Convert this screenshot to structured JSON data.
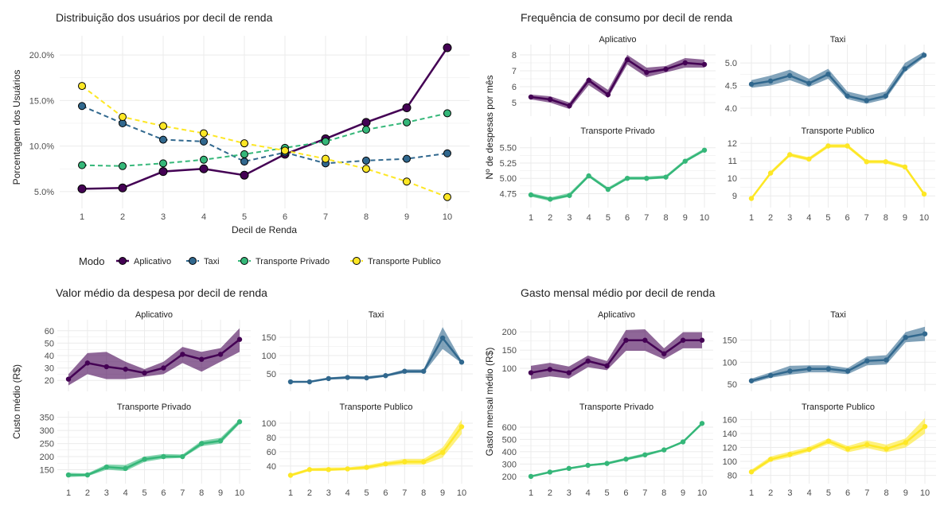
{
  "colors": {
    "aplicativo": "#440154",
    "taxi": "#31688E",
    "privado": "#35B779",
    "publico": "#FDE725",
    "grid": "#EBEBEB",
    "text": "#222222",
    "tick": "#4D4D4D"
  },
  "legend": {
    "title": "Modo",
    "items": [
      "Aplicativo",
      "Taxi",
      "Transporte Privado",
      "Transporte Publico"
    ]
  },
  "chart_data": [
    {
      "type": "line",
      "title": "Distribuição dos usuários por decil de renda",
      "xlabel": "Decil de Renda",
      "ylabel": "Porcentagem dos Usuários",
      "x": [
        1,
        2,
        3,
        4,
        5,
        6,
        7,
        8,
        9,
        10
      ],
      "ylim": [
        3.5,
        21.5
      ],
      "yticks": [
        "5.0%",
        "10.0%",
        "15.0%",
        "20.0%"
      ],
      "ytick_values": [
        5,
        10,
        15,
        20
      ],
      "series": [
        {
          "name": "Aplicativo",
          "values": [
            5.3,
            5.4,
            7.2,
            7.5,
            6.8,
            9.1,
            10.8,
            12.6,
            14.2,
            20.8
          ]
        },
        {
          "name": "Taxi",
          "values": [
            14.4,
            12.5,
            10.7,
            10.5,
            8.3,
            9.3,
            8.1,
            8.4,
            8.6,
            9.2
          ]
        },
        {
          "name": "Transporte Privado",
          "values": [
            7.9,
            7.8,
            8.1,
            8.5,
            9.1,
            9.8,
            10.5,
            11.8,
            12.6,
            13.6
          ]
        },
        {
          "name": "Transporte Publico",
          "values": [
            16.6,
            13.2,
            12.2,
            11.4,
            10.3,
            9.5,
            8.6,
            7.5,
            6.1,
            4.4
          ]
        }
      ]
    },
    {
      "type": "line",
      "title": "Frequência de consumo por decil de renda",
      "ylabel": "Nº de despesas por mês",
      "x": [
        1,
        2,
        3,
        4,
        5,
        6,
        7,
        8,
        9,
        10
      ],
      "panels": [
        {
          "name": "Aplicativo",
          "ylim": [
            4.45,
            8.35
          ],
          "yticks": [
            "5",
            "6",
            "7",
            "8"
          ],
          "ytick_values": [
            5,
            6,
            7,
            8
          ],
          "values": [
            5.35,
            5.2,
            4.8,
            6.4,
            5.5,
            7.7,
            6.9,
            7.1,
            7.5,
            7.4
          ],
          "lower": [
            5.2,
            5.0,
            4.6,
            6.1,
            5.3,
            7.4,
            6.6,
            6.9,
            7.2,
            7.2
          ],
          "upper": [
            5.5,
            5.4,
            5.0,
            6.6,
            5.8,
            8.0,
            7.2,
            7.3,
            7.8,
            7.7
          ]
        },
        {
          "name": "Taxi",
          "ylim": [
            3.93,
            5.3
          ],
          "yticks": [
            "4.0",
            "4.5",
            "5.0"
          ],
          "ytick_values": [
            4.0,
            4.5,
            5.0
          ],
          "values": [
            4.53,
            4.6,
            4.72,
            4.55,
            4.75,
            4.27,
            4.17,
            4.27,
            4.87,
            5.17
          ],
          "lower": [
            4.45,
            4.5,
            4.62,
            4.47,
            4.65,
            4.2,
            4.1,
            4.2,
            4.8,
            5.12
          ],
          "upper": [
            4.62,
            4.72,
            4.85,
            4.65,
            4.87,
            4.37,
            4.27,
            4.37,
            5.0,
            5.25
          ]
        },
        {
          "name": "Transporte Privado",
          "ylim": [
            4.6,
            5.6
          ],
          "yticks": [
            "4.75",
            "5.00",
            "5.25",
            "5.50"
          ],
          "ytick_values": [
            4.75,
            5.0,
            5.25,
            5.5
          ],
          "values": [
            4.73,
            4.66,
            4.72,
            5.04,
            4.82,
            5.0,
            5.0,
            5.02,
            5.28,
            5.46
          ],
          "lower": [
            4.7,
            4.63,
            4.7,
            5.02,
            4.8,
            4.98,
            4.98,
            5.0,
            5.26,
            5.44
          ],
          "upper": [
            4.76,
            4.69,
            4.76,
            5.07,
            4.85,
            5.03,
            5.03,
            5.05,
            5.31,
            5.49
          ]
        },
        {
          "name": "Transporte Publico",
          "ylim": [
            8.6,
            12.1
          ],
          "yticks": [
            "9",
            "10",
            "11",
            "12"
          ],
          "ytick_values": [
            9,
            10,
            11,
            12
          ],
          "values": [
            8.85,
            10.3,
            11.35,
            11.1,
            11.85,
            11.85,
            10.95,
            10.95,
            10.65,
            9.1
          ],
          "lower": [
            8.8,
            10.2,
            11.25,
            11.0,
            11.75,
            11.75,
            10.85,
            10.85,
            10.55,
            9.0
          ],
          "upper": [
            8.9,
            10.4,
            11.45,
            11.2,
            11.95,
            11.95,
            11.05,
            11.05,
            10.75,
            9.2
          ]
        }
      ]
    },
    {
      "type": "line",
      "title": "Valor médio da despesa por decil de renda",
      "ylabel": "Custo médio (R$)",
      "x": [
        1,
        2,
        3,
        4,
        5,
        6,
        7,
        8,
        9,
        10
      ],
      "panels": [
        {
          "name": "Aplicativo",
          "ylim": [
            15,
            65
          ],
          "yticks": [
            "20",
            "30",
            "40",
            "50",
            "60"
          ],
          "ytick_values": [
            20,
            30,
            40,
            50,
            60
          ],
          "values": [
            21,
            34,
            31,
            29,
            26,
            30,
            41,
            37,
            41,
            53
          ],
          "lower": [
            16,
            25,
            21,
            21,
            23,
            25,
            34,
            27,
            35,
            43
          ],
          "upper": [
            25,
            42,
            43,
            35,
            29,
            35,
            47,
            43,
            46,
            62
          ]
        },
        {
          "name": "Taxi",
          "ylim": [
            15,
            185
          ],
          "yticks": [
            "50",
            "100",
            "150"
          ],
          "ytick_values": [
            50,
            100,
            150
          ],
          "values": [
            28,
            28,
            37,
            40,
            39,
            45,
            57,
            57,
            148,
            82
          ],
          "lower": [
            26,
            26,
            34,
            36,
            35,
            42,
            52,
            52,
            118,
            79
          ],
          "upper": [
            30,
            30,
            40,
            44,
            43,
            48,
            62,
            62,
            178,
            85
          ]
        },
        {
          "name": "Transporte Privado",
          "ylim": [
            115,
            355
          ],
          "yticks": [
            "150",
            "200",
            "250",
            "300",
            "350"
          ],
          "ytick_values": [
            150,
            200,
            250,
            300,
            350
          ],
          "values": [
            130,
            130,
            160,
            155,
            190,
            200,
            200,
            250,
            260,
            333
          ],
          "lower": [
            122,
            125,
            150,
            145,
            180,
            192,
            195,
            240,
            250,
            325
          ],
          "upper": [
            138,
            136,
            170,
            168,
            200,
            210,
            208,
            260,
            272,
            342
          ]
        },
        {
          "name": "Transporte Publico",
          "ylim": [
            22,
            110
          ],
          "yticks": [
            "40",
            "60",
            "80",
            "100"
          ],
          "ytick_values": [
            40,
            60,
            80,
            100
          ],
          "values": [
            27,
            35,
            35,
            36,
            38,
            43,
            46,
            46,
            59,
            95
          ],
          "lower": [
            25,
            33,
            33,
            34,
            35,
            40,
            42,
            42,
            52,
            85
          ],
          "upper": [
            29,
            37,
            38,
            38,
            41,
            46,
            50,
            50,
            66,
            105
          ]
        }
      ]
    },
    {
      "type": "line",
      "title": "Gasto mensal médio por decil de renda",
      "ylabel": "Gasto mensal médio (R$)",
      "x": [
        1,
        2,
        3,
        4,
        5,
        6,
        7,
        8,
        9,
        10
      ],
      "panels": [
        {
          "name": "Aplicativo",
          "ylim": [
            50,
            220
          ],
          "yticks": [
            "100",
            "150",
            "200"
          ],
          "ytick_values": [
            100,
            150,
            200
          ],
          "values": [
            88,
            97,
            88,
            120,
            107,
            177,
            177,
            140,
            177,
            177
          ],
          "lower": [
            70,
            78,
            72,
            103,
            95,
            148,
            148,
            125,
            155,
            155
          ],
          "upper": [
            107,
            115,
            105,
            135,
            120,
            205,
            207,
            155,
            199,
            199
          ]
        },
        {
          "name": "Taxi",
          "ylim": [
            45,
            185
          ],
          "yticks": [
            "50",
            "100",
            "150"
          ],
          "ytick_values": [
            50,
            100,
            150
          ],
          "values": [
            58,
            70,
            80,
            85,
            85,
            80,
            103,
            105,
            156,
            164
          ],
          "lower": [
            53,
            65,
            72,
            77,
            77,
            73,
            93,
            95,
            145,
            148
          ],
          "upper": [
            63,
            77,
            92,
            93,
            93,
            87,
            113,
            116,
            168,
            180
          ]
        },
        {
          "name": "Transporte Privado",
          "ylim": [
            180,
            690
          ],
          "yticks": [
            "200",
            "300",
            "400",
            "500",
            "600"
          ],
          "ytick_values": [
            200,
            300,
            400,
            500,
            600
          ],
          "values": [
            200,
            235,
            265,
            290,
            305,
            340,
            375,
            415,
            480,
            630
          ],
          "lower": [
            198,
            230,
            260,
            283,
            295,
            330,
            362,
            408,
            472,
            622
          ],
          "upper": [
            203,
            240,
            272,
            298,
            315,
            352,
            388,
            422,
            488,
            640
          ]
        },
        {
          "name": "Transporte Publico",
          "ylim": [
            75,
            165
          ],
          "yticks": [
            "80",
            "100",
            "120",
            "140",
            "160"
          ],
          "ytick_values": [
            80,
            100,
            120,
            140,
            160
          ],
          "values": [
            85,
            103,
            110,
            117,
            129,
            118,
            124,
            118,
            127,
            150
          ],
          "lower": [
            82,
            100,
            106,
            114,
            125,
            113,
            119,
            113,
            120,
            140
          ],
          "upper": [
            88,
            107,
            114,
            121,
            133,
            122,
            130,
            124,
            133,
            162
          ]
        }
      ]
    }
  ]
}
